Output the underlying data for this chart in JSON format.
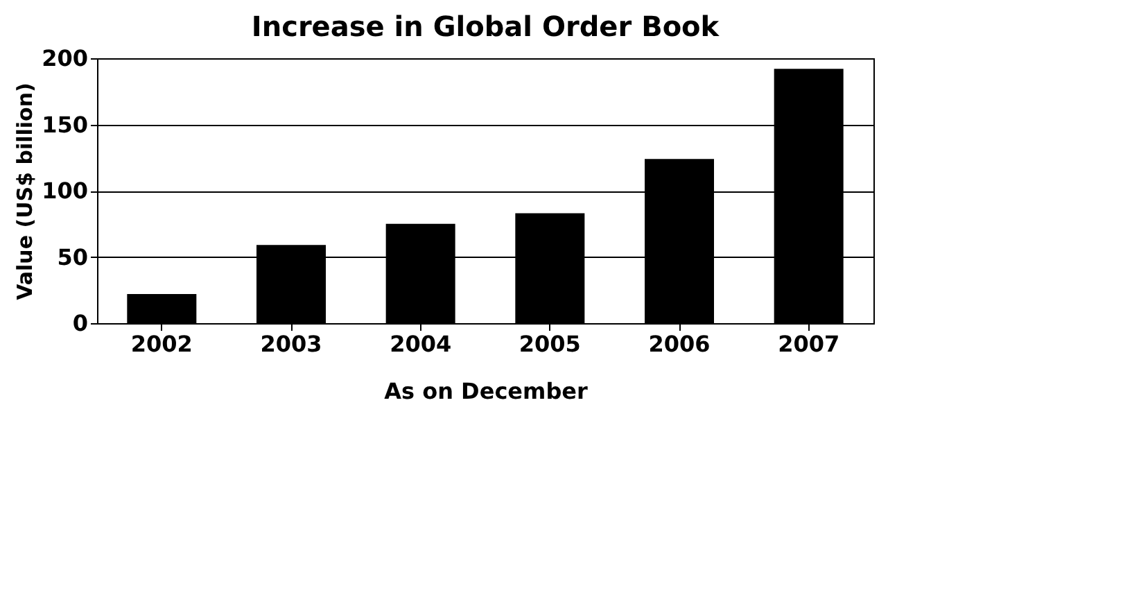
{
  "chart_data": {
    "type": "bar",
    "title": "Increase in Global Order Book",
    "xlabel": "As on December",
    "ylabel": "Value (US$ billion)",
    "categories": [
      "2002",
      "2003",
      "2004",
      "2005",
      "2006",
      "2007"
    ],
    "values": [
      22,
      59,
      75,
      83,
      124,
      192
    ],
    "color": "#000000",
    "ylim": [
      0,
      200
    ],
    "yticks": [
      0,
      50,
      100,
      150,
      200
    ],
    "grid": "y"
  }
}
